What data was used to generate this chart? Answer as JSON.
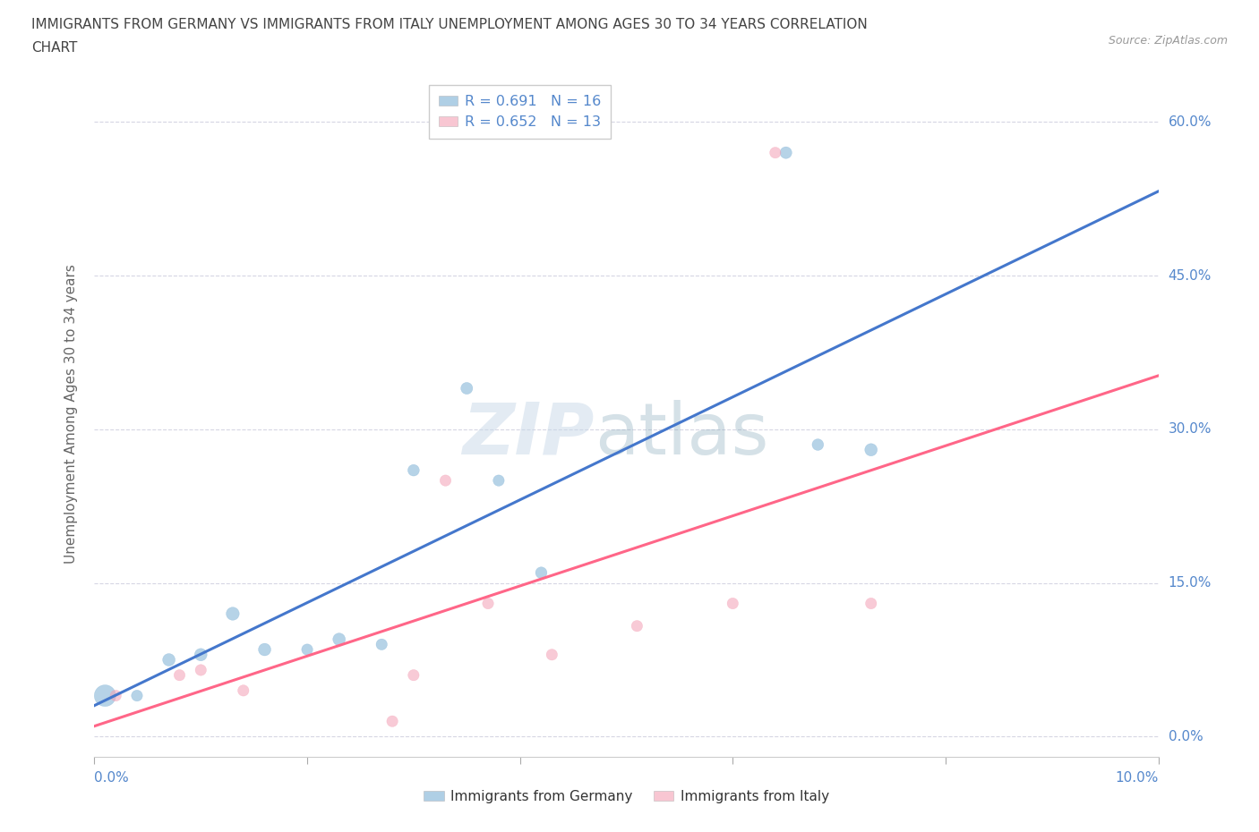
{
  "title_line1": "IMMIGRANTS FROM GERMANY VS IMMIGRANTS FROM ITALY UNEMPLOYMENT AMONG AGES 30 TO 34 YEARS CORRELATION",
  "title_line2": "CHART",
  "source": "Source: ZipAtlas.com",
  "ylabel": "Unemployment Among Ages 30 to 34 years",
  "ytick_labels": [
    "0.0%",
    "15.0%",
    "30.0%",
    "45.0%",
    "60.0%"
  ],
  "ytick_values": [
    0.0,
    0.15,
    0.3,
    0.45,
    0.6
  ],
  "xlim": [
    0.0,
    0.1
  ],
  "ylim": [
    -0.02,
    0.65
  ],
  "xaxis_left_label": "0.0%",
  "xaxis_right_label": "10.0%",
  "germany_R": 0.691,
  "germany_N": 16,
  "italy_R": 0.652,
  "italy_N": 13,
  "germany_color": "#7BAFD4",
  "italy_color": "#F4A0B5",
  "germany_line_color": "#4477CC",
  "italy_line_color": "#FF6688",
  "tick_color": "#5588CC",
  "grid_color": "#CCCCDD",
  "title_color": "#444444",
  "watermark_zip_color": "#C8D8E8",
  "watermark_atlas_color": "#88AABB",
  "germany_x": [
    0.001,
    0.004,
    0.007,
    0.01,
    0.013,
    0.016,
    0.02,
    0.023,
    0.027,
    0.03,
    0.035,
    0.038,
    0.042,
    0.065,
    0.068,
    0.073
  ],
  "germany_y": [
    0.04,
    0.04,
    0.075,
    0.08,
    0.12,
    0.085,
    0.085,
    0.095,
    0.09,
    0.26,
    0.34,
    0.25,
    0.16,
    0.57,
    0.285,
    0.28
  ],
  "germany_sizes": [
    300,
    80,
    100,
    100,
    110,
    100,
    80,
    100,
    80,
    85,
    90,
    80,
    85,
    90,
    85,
    100
  ],
  "italy_x": [
    0.002,
    0.008,
    0.01,
    0.014,
    0.028,
    0.03,
    0.033,
    0.037,
    0.043,
    0.051,
    0.06,
    0.064,
    0.073
  ],
  "italy_y": [
    0.04,
    0.06,
    0.065,
    0.045,
    0.015,
    0.06,
    0.25,
    0.13,
    0.08,
    0.108,
    0.13,
    0.57,
    0.13
  ],
  "italy_sizes": [
    80,
    80,
    80,
    80,
    80,
    80,
    80,
    80,
    80,
    80,
    80,
    80,
    80
  ],
  "legend_germany_label": "R = 0.691   N = 16",
  "legend_italy_label": "R = 0.652   N = 13",
  "bottom_legend_germany": "Immigrants from Germany",
  "bottom_legend_italy": "Immigrants from Italy"
}
